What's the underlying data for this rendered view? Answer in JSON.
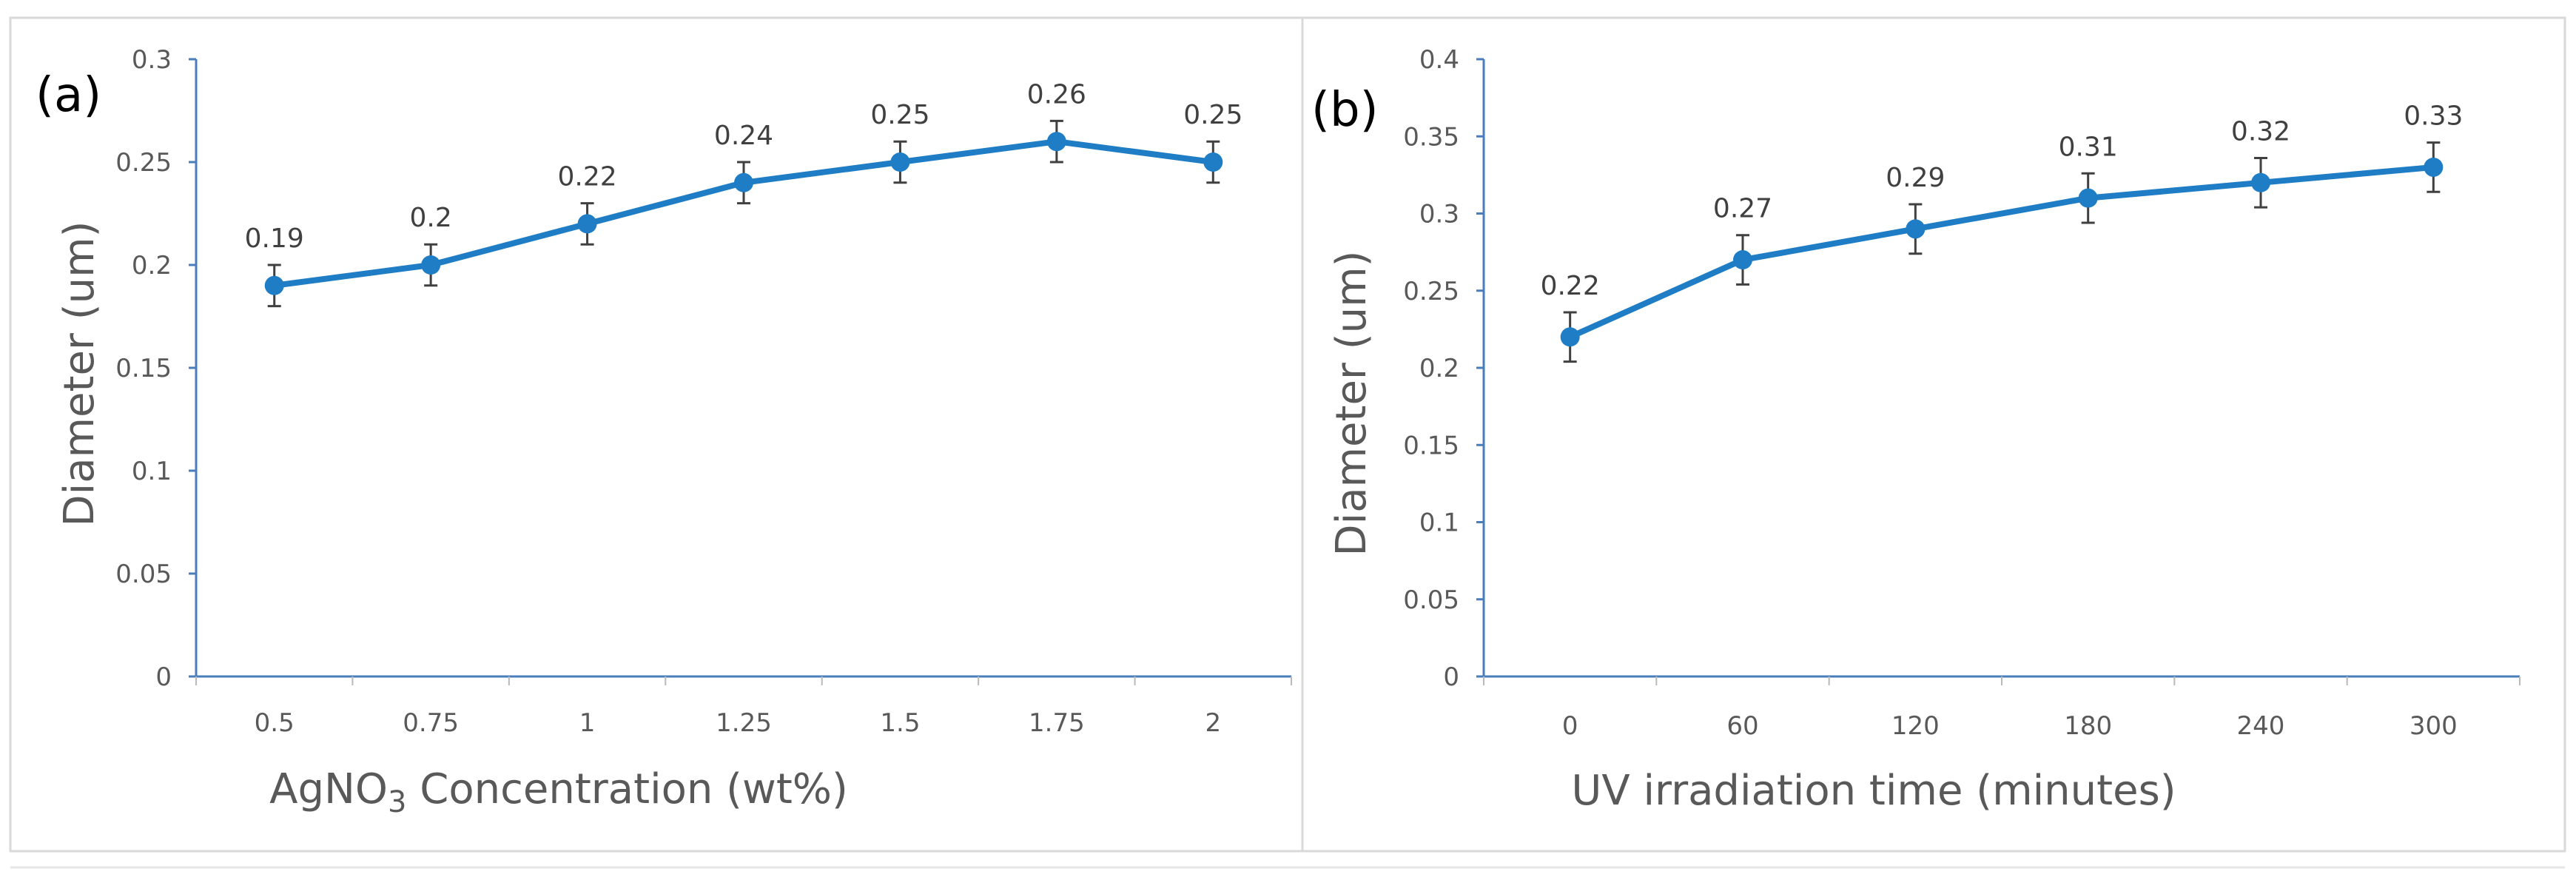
{
  "chart_data": [
    {
      "type": "line",
      "panel_label": "(a)",
      "title": "",
      "xlabel_main": "AgNO",
      "xlabel_sub": "3",
      "xlabel_rest": " Concentration (wt%)",
      "ylabel": "Diameter (um)",
      "categories": [
        "0.5",
        "0.75",
        "1",
        "1.25",
        "1.5",
        "1.75",
        "2"
      ],
      "values": [
        0.19,
        0.2,
        0.22,
        0.24,
        0.25,
        0.26,
        0.25
      ],
      "data_labels": [
        "0.19",
        "0.2",
        "0.22",
        "0.24",
        "0.25",
        "0.26",
        "0.25"
      ],
      "errors": [
        0.01,
        0.01,
        0.01,
        0.01,
        0.01,
        0.01,
        0.01
      ],
      "ylim": [
        0,
        0.3
      ],
      "yticks": [
        "0",
        "0.05",
        "0.1",
        "0.15",
        "0.2",
        "0.25",
        "0.3"
      ],
      "grid": false,
      "color": "#1f7dc5"
    },
    {
      "type": "line",
      "panel_label": "(b)",
      "title": "",
      "xlabel": "UV irradiation time (minutes)",
      "ylabel": "Diameter (um)",
      "categories": [
        "0",
        "60",
        "120",
        "180",
        "240",
        "300"
      ],
      "values": [
        0.22,
        0.27,
        0.29,
        0.31,
        0.32,
        0.33
      ],
      "data_labels": [
        "0.22",
        "0.27",
        "0.29",
        "0.31",
        "0.32",
        "0.33"
      ],
      "errors": [
        0.016,
        0.016,
        0.016,
        0.016,
        0.016,
        0.016
      ],
      "ylim": [
        0,
        0.4
      ],
      "yticks": [
        "0",
        "0.05",
        "0.1",
        "0.15",
        "0.2",
        "0.25",
        "0.3",
        "0.35",
        "0.4"
      ],
      "grid": false,
      "color": "#1f7dc5"
    }
  ]
}
